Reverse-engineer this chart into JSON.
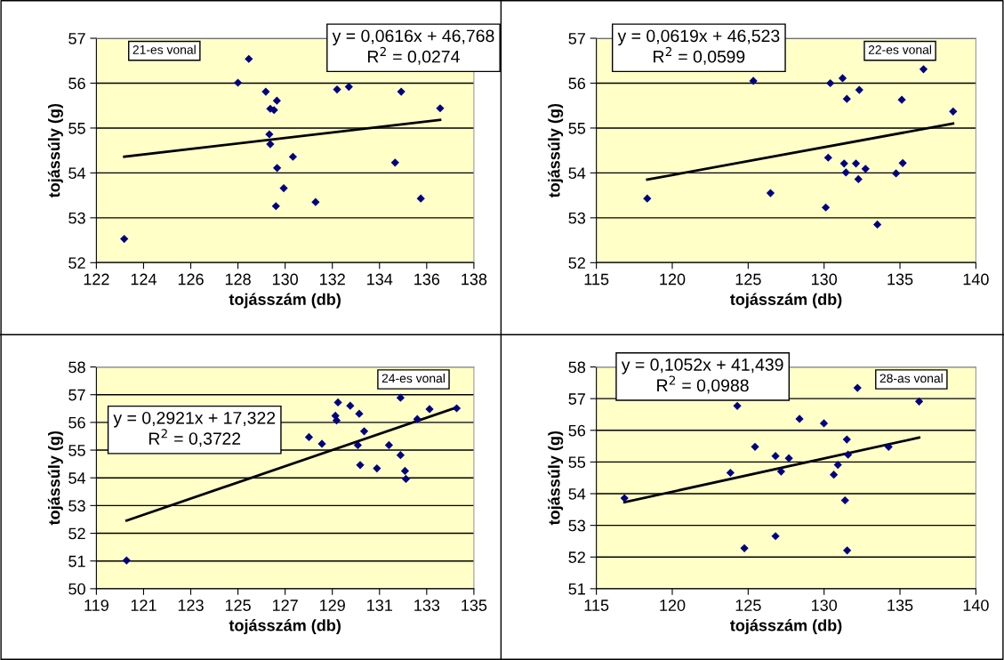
{
  "chart_data": [
    {
      "type": "scatter",
      "xlabel": "tojásszám (db)",
      "ylabel": "tojássúly (g)",
      "xlim": [
        122,
        138
      ],
      "xticks": [
        122,
        124,
        126,
        128,
        130,
        132,
        134,
        136,
        138
      ],
      "ylim": [
        52,
        57
      ],
      "yticks": [
        52,
        53,
        54,
        55,
        56,
        57
      ],
      "grid": "y",
      "marker": "diamond",
      "annotations": [
        "21-es vonal",
        "y = 0,0616x + 46,768\nR$^{2}$ = 0,0274"
      ],
      "series": [
        {
          "color": "#000080",
          "x": [
            123.18,
            128.0,
            128.46,
            129.18,
            129.37,
            129.53,
            129.65,
            129.33,
            129.37,
            129.66,
            129.94,
            129.61,
            130.33,
            131.29,
            132.2,
            132.7,
            134.92,
            134.66,
            135.75,
            136.57
          ],
          "values": [
            52.53,
            56.01,
            56.54,
            55.81,
            55.43,
            55.4,
            55.61,
            54.86,
            54.64,
            54.11,
            53.66,
            53.26,
            54.36,
            53.35,
            55.86,
            55.92,
            55.81,
            54.23,
            53.43,
            55.44
          ]
        },
        {
          "type": "line",
          "color": "#000000",
          "marker": "none",
          "x": [
            123.18,
            136.57
          ],
          "values": [
            54.36,
            55.18
          ]
        }
      ]
    },
    {
      "type": "scatter",
      "xlabel": "tojásszám (db)",
      "ylabel": "tojássúly (g)",
      "xlim": [
        115,
        140
      ],
      "xticks": [
        115,
        120,
        125,
        130,
        135,
        140
      ],
      "ylim": [
        52,
        57
      ],
      "yticks": [
        52,
        53,
        54,
        55,
        56,
        57
      ],
      "grid": "y",
      "marker": "diamond",
      "annotations": [
        "22-es vonal",
        "y = 0,0619x + 46,523\nR$^{2}$ = 0,0599"
      ],
      "series": [
        {
          "color": "#000080",
          "x": [
            118.35,
            125.34,
            126.47,
            130.11,
            130.27,
            130.41,
            131.22,
            131.5,
            131.32,
            131.44,
            132.1,
            132.32,
            132.26,
            132.73,
            133.51,
            134.74,
            135.12,
            135.18,
            136.55,
            138.5
          ],
          "values": [
            53.43,
            56.05,
            53.55,
            53.23,
            54.34,
            56.0,
            56.11,
            55.65,
            54.21,
            54.01,
            54.21,
            55.85,
            53.86,
            54.09,
            52.85,
            53.99,
            55.63,
            54.22,
            56.31,
            55.37
          ]
        },
        {
          "type": "line",
          "color": "#000000",
          "marker": "none",
          "x": [
            118.35,
            138.5
          ],
          "values": [
            53.85,
            55.1
          ]
        }
      ]
    },
    {
      "type": "scatter",
      "xlabel": "tojásszám (db)",
      "ylabel": "tojássúly (g)",
      "xlim": [
        119,
        135
      ],
      "xticks": [
        119,
        121,
        123,
        125,
        127,
        129,
        131,
        133,
        135
      ],
      "ylim": [
        50,
        58
      ],
      "yticks": [
        50,
        51,
        52,
        53,
        54,
        55,
        56,
        57,
        58
      ],
      "grid": "y",
      "marker": "diamond",
      "annotations": [
        "24-es vonal",
        "y = 0,2921x + 17,322\nR$^{2}$ = 0,3722"
      ],
      "series": [
        {
          "color": "#000080",
          "x": [
            120.28,
            128.01,
            128.56,
            129.13,
            129.18,
            129.24,
            129.76,
            130.14,
            130.08,
            130.35,
            130.18,
            130.89,
            131.4,
            131.89,
            131.89,
            132.08,
            132.12,
            132.6,
            133.12,
            134.27
          ],
          "values": [
            51.02,
            55.47,
            55.23,
            56.24,
            56.07,
            56.72,
            56.6,
            56.31,
            55.18,
            55.68,
            54.46,
            54.34,
            55.18,
            56.89,
            54.82,
            54.25,
            53.96,
            56.12,
            56.48,
            56.51
          ]
        },
        {
          "type": "line",
          "color": "#000000",
          "marker": "none",
          "x": [
            120.28,
            134.27
          ],
          "values": [
            52.46,
            56.54
          ]
        }
      ]
    },
    {
      "type": "scatter",
      "xlabel": "tojásszám (db)",
      "ylabel": "tojássúly (g)",
      "xlim": [
        115,
        140
      ],
      "xticks": [
        115,
        120,
        125,
        130,
        135,
        140
      ],
      "ylim": [
        51,
        58
      ],
      "yticks": [
        51,
        52,
        53,
        54,
        55,
        56,
        57,
        58
      ],
      "grid": "y",
      "marker": "diamond",
      "annotations": [
        "28-as vonal",
        "y = 0,1052x + 41,439\nR$^{2}$ = 0,0988"
      ],
      "series": [
        {
          "color": "#000080",
          "x": [
            116.85,
            123.83,
            124.28,
            124.75,
            125.45,
            126.8,
            126.8,
            127.17,
            127.68,
            128.38,
            129.99,
            130.64,
            130.91,
            131.5,
            131.58,
            131.38,
            131.52,
            132.2,
            134.25,
            136.26
          ],
          "values": [
            53.86,
            54.66,
            56.77,
            52.28,
            55.48,
            55.19,
            52.66,
            54.7,
            55.12,
            56.36,
            56.22,
            54.6,
            54.91,
            55.71,
            55.23,
            53.79,
            52.21,
            57.34,
            55.48,
            56.91
          ]
        },
        {
          "type": "line",
          "color": "#000000",
          "marker": "none",
          "x": [
            116.85,
            136.26
          ],
          "values": [
            53.73,
            55.77
          ]
        }
      ]
    }
  ]
}
